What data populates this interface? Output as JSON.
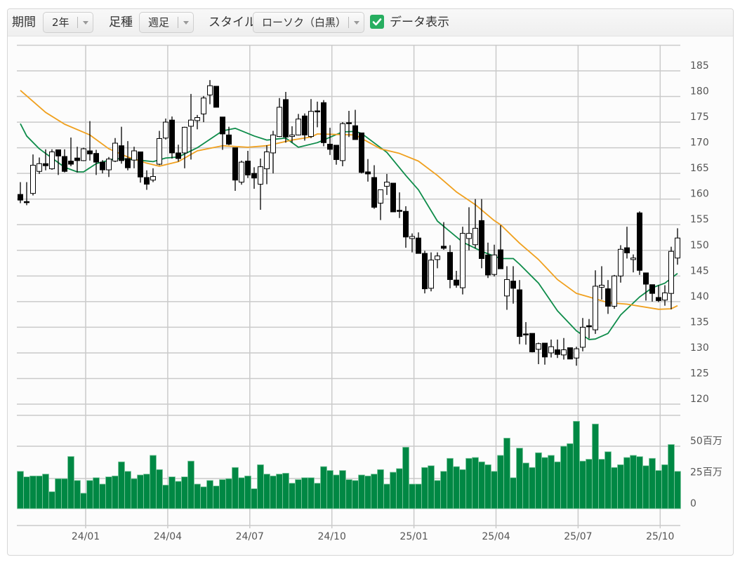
{
  "toolbar": {
    "period_label": "期間",
    "period_value": "2年",
    "bar_type_label": "足種",
    "bar_type_value": "週足",
    "style_label": "スタイル",
    "style_value": "ローソク（白黒）",
    "show_data_label": "データ表示",
    "show_data_checked": true
  },
  "colors": {
    "volume": "#008844",
    "ma_short": "#0e8c4a",
    "ma_long": "#f0a01e",
    "checkbox": "#27ae60",
    "up_candle": "#ffffff",
    "down_candle": "#000000"
  },
  "chart_data": {
    "type": "candlestick",
    "x_tick_labels": [
      "24/01",
      "24/04",
      "24/07",
      "24/10",
      "25/01",
      "25/04",
      "25/07",
      "25/10"
    ],
    "price_ticks": [
      185,
      180,
      175,
      170,
      165,
      160,
      155,
      150,
      145,
      140,
      135,
      130,
      125,
      120
    ],
    "volume_ticks": [
      {
        "value": 50,
        "label": "50百万"
      },
      {
        "value": 25,
        "label": "25百万"
      },
      {
        "value": 0,
        "label": "0"
      }
    ],
    "candles_ohlc": [
      [
        160.9,
        163.3,
        159.2,
        159.8
      ],
      [
        159.5,
        163.3,
        158.8,
        159.4
      ],
      [
        161.1,
        168.7,
        160.7,
        166.6
      ],
      [
        165.4,
        168.1,
        164.9,
        166.9
      ],
      [
        166.9,
        169.7,
        165.6,
        166.5
      ],
      [
        165.9,
        169.7,
        165.7,
        169.2
      ],
      [
        169.6,
        169.6,
        164.7,
        168.4
      ],
      [
        168.3,
        169.7,
        165.2,
        165.4
      ],
      [
        167.4,
        172.0,
        166.4,
        166.8
      ],
      [
        168.0,
        170.2,
        165.2,
        167.5
      ],
      [
        167.5,
        170.0,
        167.4,
        169.8
      ],
      [
        169.4,
        175.2,
        167.5,
        168.8
      ],
      [
        168.9,
        169.6,
        164.7,
        167.2
      ],
      [
        167.2,
        167.6,
        165.0,
        165.7
      ],
      [
        165.7,
        168.2,
        164.3,
        167.8
      ],
      [
        167.4,
        171.9,
        167.2,
        170.9
      ],
      [
        170.4,
        174.1,
        166.9,
        167.5
      ],
      [
        167.9,
        171.3,
        165.6,
        166.1
      ],
      [
        167.6,
        170.2,
        166.0,
        169.4
      ],
      [
        169.2,
        169.2,
        163.2,
        164.3
      ],
      [
        164.2,
        165.6,
        161.8,
        162.9
      ],
      [
        163.7,
        166.0,
        163.3,
        164.4
      ],
      [
        166.8,
        173.3,
        166.6,
        171.8
      ],
      [
        171.9,
        175.7,
        171.6,
        175.0
      ],
      [
        175.4,
        176.1,
        167.9,
        169.0
      ],
      [
        169.0,
        170.6,
        167.3,
        167.9
      ],
      [
        169.0,
        174.1,
        166.0,
        174.0
      ],
      [
        174.2,
        180.5,
        167.7,
        175.4
      ],
      [
        175.3,
        176.4,
        173.6,
        175.9
      ],
      [
        176.6,
        180.1,
        175.0,
        179.7
      ],
      [
        180.3,
        183.2,
        178.5,
        182.1
      ],
      [
        182.0,
        182.0,
        177.9,
        177.9
      ],
      [
        176.0,
        176.0,
        169.6,
        172.7
      ],
      [
        172.5,
        174.1,
        170.5,
        170.7
      ],
      [
        170.0,
        170.0,
        161.6,
        163.7
      ],
      [
        163.3,
        167.5,
        162.8,
        167.2
      ],
      [
        167.4,
        169.4,
        164.1,
        164.7
      ],
      [
        165.0,
        166.2,
        162.0,
        164.1
      ],
      [
        162.9,
        167.9,
        157.9,
        166.3
      ],
      [
        165.9,
        170.5,
        162.9,
        169.2
      ],
      [
        169.0,
        173.3,
        165.0,
        172.5
      ],
      [
        172.2,
        179.7,
        172.1,
        177.9
      ],
      [
        179.4,
        180.9,
        171.0,
        172.1
      ],
      [
        172.2,
        174.2,
        171.0,
        172.5
      ],
      [
        172.5,
        176.6,
        172.4,
        175.6
      ],
      [
        176.2,
        176.7,
        171.4,
        172.5
      ],
      [
        172.2,
        179.5,
        171.9,
        177.1
      ],
      [
        177.2,
        179.0,
        174.0,
        177.0
      ],
      [
        178.8,
        179.3,
        170.3,
        171.0
      ],
      [
        170.7,
        173.9,
        168.6,
        169.7
      ],
      [
        170.5,
        170.5,
        166.7,
        167.7
      ],
      [
        167.5,
        175.0,
        166.4,
        174.7
      ],
      [
        174.9,
        177.2,
        172.1,
        174.7
      ],
      [
        174.3,
        177.4,
        171.6,
        171.6
      ],
      [
        172.9,
        172.9,
        165.0,
        165.2
      ],
      [
        165.3,
        167.8,
        163.4,
        164.9
      ],
      [
        164.2,
        166.6,
        158.1,
        158.4
      ],
      [
        159.2,
        161.8,
        155.9,
        161.8
      ],
      [
        162.5,
        164.9,
        160.8,
        163.3
      ],
      [
        163.1,
        163.1,
        157.5,
        157.5
      ],
      [
        157.8,
        161.3,
        156.3,
        157.6
      ],
      [
        157.6,
        158.6,
        150.5,
        152.6
      ],
      [
        152.3,
        153.3,
        149.6,
        152.7
      ],
      [
        152.4,
        153.5,
        149.4,
        149.4
      ],
      [
        149.4,
        149.9,
        141.6,
        142.5
      ],
      [
        142.6,
        149.6,
        142.0,
        148.1
      ],
      [
        148.2,
        149.6,
        146.5,
        148.9
      ],
      [
        150.8,
        155.5,
        150.1,
        150.4
      ],
      [
        149.6,
        151.0,
        142.6,
        144.3
      ],
      [
        144.2,
        146.0,
        142.7,
        143.2
      ],
      [
        142.7,
        154.6,
        141.4,
        153.3
      ],
      [
        152.3,
        158.4,
        150.0,
        153.3
      ],
      [
        151.1,
        160.0,
        150.4,
        154.3
      ],
      [
        155.8,
        160.0,
        146.5,
        148.4
      ],
      [
        149.1,
        151.5,
        144.6,
        145.2
      ],
      [
        145.3,
        151.1,
        144.9,
        149.1
      ],
      [
        150.1,
        154.9,
        146.4,
        146.4
      ],
      [
        141.1,
        146.9,
        138.4,
        144.3
      ],
      [
        144.0,
        146.9,
        139.6,
        142.6
      ],
      [
        142.3,
        144.2,
        131.7,
        133.2
      ],
      [
        133.7,
        136.0,
        131.6,
        133.5
      ],
      [
        133.8,
        133.8,
        130.1,
        130.2
      ],
      [
        130.7,
        132.0,
        127.8,
        131.8
      ],
      [
        131.9,
        131.9,
        127.7,
        129.2
      ],
      [
        130.0,
        132.6,
        129.1,
        131.2
      ],
      [
        130.6,
        132.6,
        129.0,
        129.7
      ],
      [
        129.6,
        132.9,
        128.7,
        130.6
      ],
      [
        131.0,
        131.0,
        128.8,
        128.8
      ],
      [
        129.0,
        131.2,
        127.5,
        130.8
      ],
      [
        131.1,
        136.8,
        130.3,
        135.0
      ],
      [
        135.3,
        136.6,
        132.8,
        135.1
      ],
      [
        134.5,
        146.1,
        133.7,
        143.0
      ],
      [
        142.8,
        146.9,
        140.4,
        143.2
      ],
      [
        142.5,
        144.2,
        137.6,
        139.1
      ],
      [
        139.1,
        145.2,
        138.6,
        145.0
      ],
      [
        145.0,
        151.0,
        143.7,
        150.2
      ],
      [
        150.5,
        154.6,
        148.4,
        149.5
      ],
      [
        148.2,
        149.2,
        145.7,
        148.5
      ],
      [
        157.3,
        157.6,
        145.2,
        146.1
      ],
      [
        145.6,
        145.6,
        140.2,
        143.4
      ],
      [
        143.3,
        143.3,
        140.0,
        141.6
      ],
      [
        140.8,
        143.2,
        139.9,
        140.2
      ],
      [
        140.3,
        143.2,
        139.2,
        141.7
      ],
      [
        141.6,
        150.7,
        138.5,
        149.8
      ],
      [
        148.5,
        154.3,
        147.2,
        152.4
      ]
    ],
    "volume_millions": [
      29.9,
      25.5,
      26.2,
      26.2,
      27.7,
      13.6,
      24.0,
      24.0,
      41.8,
      22.6,
      12.4,
      22.6,
      24.8,
      19.7,
      25.5,
      26.2,
      37.5,
      29.9,
      24.0,
      27.0,
      27.7,
      42.7,
      31.3,
      18.9,
      25.5,
      21.9,
      25.5,
      38.1,
      19.7,
      17.5,
      22.6,
      18.2,
      23.3,
      24.0,
      33.0,
      24.8,
      26.2,
      16.0,
      35.2,
      27.7,
      26.2,
      27.7,
      28.4,
      20.4,
      23.3,
      24.8,
      24.8,
      20.4,
      33.7,
      30.6,
      27.0,
      30.6,
      23.3,
      22.6,
      27.0,
      26.2,
      27.7,
      31.3,
      19.7,
      29.2,
      32.1,
      49.2,
      19.7,
      19.7,
      33.0,
      34.4,
      22.6,
      29.9,
      40.3,
      33.7,
      31.3,
      40.3,
      41.0,
      37.5,
      35.2,
      29.9,
      42.7,
      56.5,
      24.8,
      48.5,
      36.6,
      33.0,
      44.8,
      41.0,
      42.7,
      37.5,
      50.0,
      52.1,
      70.0,
      38.1,
      39.6,
      67.8,
      39.6,
      45.6,
      33.0,
      35.2,
      41.0,
      42.7,
      41.7,
      34.4,
      40.3,
      30.6,
      35.2,
      51.4,
      29.9
    ],
    "moving_averages": [
      {
        "color_key": "ma_short",
        "points": [
          [
            0,
            174.7
          ],
          [
            1,
            172.3
          ],
          [
            3,
            169.8
          ],
          [
            5,
            168
          ],
          [
            7,
            166.2
          ],
          [
            9,
            165.3
          ],
          [
            10,
            165.3
          ],
          [
            12,
            166.9
          ],
          [
            15,
            167.9
          ],
          [
            18,
            167.7
          ],
          [
            21,
            167.3
          ],
          [
            23,
            168
          ],
          [
            25,
            168.2
          ],
          [
            28,
            170
          ],
          [
            32,
            173.3
          ],
          [
            34,
            173.8
          ],
          [
            37,
            172.3
          ],
          [
            39,
            171.5
          ],
          [
            42,
            171.9
          ],
          [
            44,
            170.1
          ],
          [
            47,
            171
          ],
          [
            51,
            173.1
          ],
          [
            53,
            173.2
          ],
          [
            54,
            172.8
          ],
          [
            58,
            169.1
          ],
          [
            61,
            164.6
          ],
          [
            63,
            161.8
          ],
          [
            66,
            155.7
          ],
          [
            70,
            151.6
          ],
          [
            73,
            149.8
          ],
          [
            76,
            148.4
          ],
          [
            78,
            148.4
          ],
          [
            79,
            147.3
          ],
          [
            82,
            143.6
          ],
          [
            85,
            138.2
          ],
          [
            88,
            134.3
          ],
          [
            90,
            132.6
          ],
          [
            91,
            132.7
          ],
          [
            93,
            133.8
          ],
          [
            95,
            137.4
          ],
          [
            98,
            140.9
          ],
          [
            100,
            142.7
          ],
          [
            102,
            143.6
          ],
          [
            104,
            145.5
          ]
        ]
      },
      {
        "color_key": "ma_long",
        "points": [
          [
            0,
            181.2
          ],
          [
            4,
            176.9
          ],
          [
            7,
            174.6
          ],
          [
            11,
            172.5
          ],
          [
            14,
            169.8
          ],
          [
            17,
            168.2
          ],
          [
            20,
            167
          ],
          [
            22,
            166.4
          ],
          [
            25,
            167.3
          ],
          [
            28,
            169.4
          ],
          [
            32,
            170.4
          ],
          [
            36,
            170.1
          ],
          [
            39,
            170.4
          ],
          [
            43,
            171.5
          ],
          [
            46,
            172.1
          ],
          [
            47,
            172.7
          ],
          [
            50,
            172.6
          ],
          [
            53,
            172.5
          ],
          [
            57,
            169.8
          ],
          [
            60,
            168.9
          ],
          [
            63,
            167.4
          ],
          [
            66,
            164.6
          ],
          [
            69,
            161.4
          ],
          [
            72,
            158.9
          ],
          [
            75,
            155.8
          ],
          [
            76,
            155
          ],
          [
            79,
            151.4
          ],
          [
            82,
            148.2
          ],
          [
            85,
            144.3
          ],
          [
            88,
            141.6
          ],
          [
            90,
            140.9
          ],
          [
            93,
            139.8
          ],
          [
            96,
            139.5
          ],
          [
            101,
            138.5
          ],
          [
            103,
            138.6
          ],
          [
            104,
            139.2
          ]
        ]
      }
    ]
  }
}
